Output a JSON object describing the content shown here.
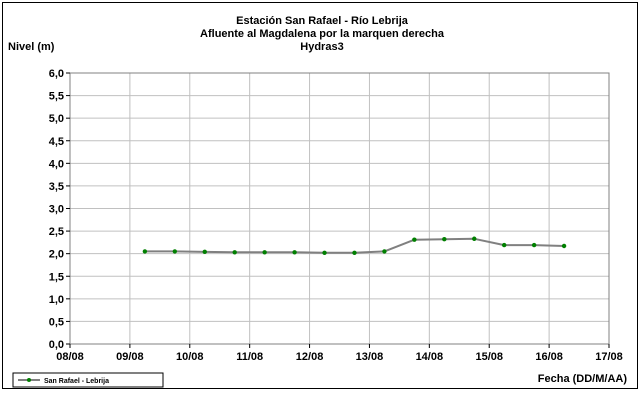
{
  "chart_data": {
    "type": "line",
    "title_lines": [
      "Estación San Rafael - Río Lebrija",
      "Afluente al Magdalena por la marquen derecha",
      "Hydras3"
    ],
    "ylabel": "Nivel (m)",
    "xlabel": "Fecha (DD/M/AA)",
    "ylim": [
      0,
      6
    ],
    "yticks": [
      "0,0",
      "0,5",
      "1,0",
      "1,5",
      "2,0",
      "2,5",
      "3,0",
      "3,5",
      "4,0",
      "4,5",
      "5,0",
      "5,5",
      "6,0"
    ],
    "xlim": [
      0,
      9
    ],
    "xticks": [
      "08/08",
      "09/08",
      "10/08",
      "11/08",
      "12/08",
      "13/08",
      "14/08",
      "15/08",
      "16/08",
      "17/08"
    ],
    "grid": true,
    "legend_position": "bottom-left",
    "series": [
      {
        "name": "San Rafael - Lebrija",
        "color": "#808080",
        "marker_color": "#008000",
        "x": [
          1.25,
          1.75,
          2.25,
          2.75,
          3.25,
          3.75,
          4.25,
          4.75,
          5.25,
          5.75,
          6.25,
          6.75,
          7.25,
          7.75,
          8.25
        ],
        "values": [
          2.05,
          2.05,
          2.04,
          2.03,
          2.03,
          2.03,
          2.02,
          2.02,
          2.05,
          2.31,
          2.32,
          2.33,
          2.19,
          2.19,
          2.17
        ]
      }
    ]
  }
}
